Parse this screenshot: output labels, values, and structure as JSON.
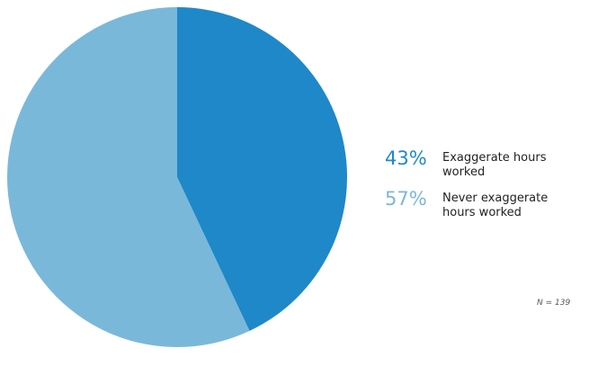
{
  "chart_data": {
    "type": "pie",
    "categories": [
      "Exaggerate hours worked",
      "Never exaggerate hours worked"
    ],
    "values": [
      43,
      57
    ],
    "value_labels": [
      "43%",
      "57%"
    ],
    "colors": [
      "#1f88c8",
      "#7ab8d9"
    ],
    "note": "N = 139"
  }
}
